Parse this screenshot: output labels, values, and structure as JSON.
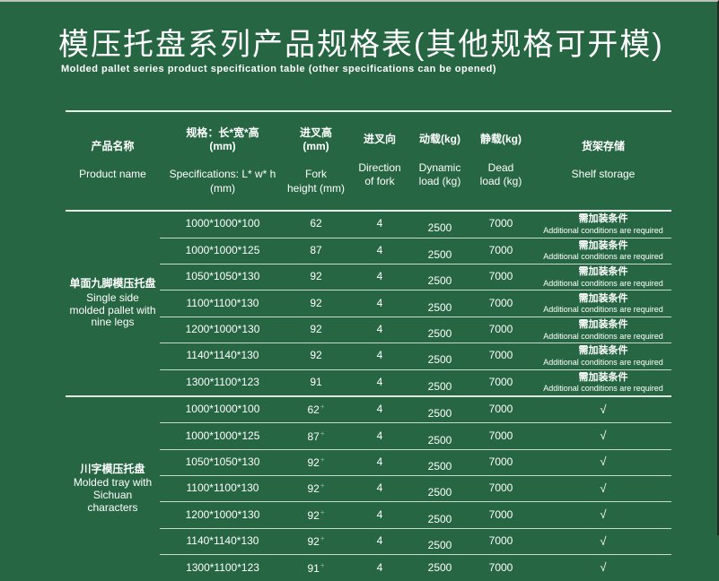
{
  "colors": {
    "background": "#266643",
    "line": "#f0f5f1",
    "text": "#ffffff"
  },
  "title": {
    "zh": "模压托盘系列产品规格表(其他规格可开模)",
    "en": "Molded pallet series product specification table (other specifications can be opened)"
  },
  "table": {
    "headers": [
      {
        "zh": "产品名称",
        "en": "Product name"
      },
      {
        "zh": "规格：长*宽*高\n(mm)",
        "en": "Specifications: L* w* h\n(mm)"
      },
      {
        "zh": "进叉高(mm)",
        "en": "Fork\nheight (mm)"
      },
      {
        "zh": "进叉向",
        "en": "Direction\nof fork"
      },
      {
        "zh": "动载(kg)",
        "en": "Dynamic\nload (kg)"
      },
      {
        "zh": "静载(kg)",
        "en": "Dead\nload (kg)"
      },
      {
        "zh": "货架存储",
        "en": "Shelf storage"
      }
    ],
    "groups": [
      {
        "name_zh": "单面九脚模压托盘",
        "name_en": "Single side molded pallet with nine legs",
        "shelf_type": "text",
        "rows": [
          {
            "spec": "1000*1000*100",
            "fork": "62",
            "dir": "4",
            "dyn": "2500",
            "dead": "7000",
            "shelf_zh": "需加装条件",
            "shelf_en": "Additional conditions are required"
          },
          {
            "spec": "1000*1000*125",
            "fork": "87",
            "dir": "4",
            "dyn": "2500",
            "dead": "7000",
            "shelf_zh": "需加装条件",
            "shelf_en": "Additional conditions are required"
          },
          {
            "spec": "1050*1050*130",
            "fork": "92",
            "dir": "4",
            "dyn": "2500",
            "dead": "7000",
            "shelf_zh": "需加装条件",
            "shelf_en": "Additional conditions are required"
          },
          {
            "spec": "1100*1100*130",
            "fork": "92",
            "dir": "4",
            "dyn": "2500",
            "dead": "7000",
            "shelf_zh": "需加装条件",
            "shelf_en": "Additional conditions are required"
          },
          {
            "spec": "1200*1000*130",
            "fork": "92",
            "dir": "4",
            "dyn": "2500",
            "dead": "7000",
            "shelf_zh": "需加装条件",
            "shelf_en": "Additional conditions are required"
          },
          {
            "spec": "1140*1140*130",
            "fork": "92",
            "dir": "4",
            "dyn": "2500",
            "dead": "7000",
            "shelf_zh": "需加装条件",
            "shelf_en": "Additional conditions are required"
          },
          {
            "spec": "1300*1100*123",
            "fork": "91",
            "dir": "4",
            "dyn": "2500",
            "dead": "7000",
            "shelf_zh": "需加装条件",
            "shelf_en": "Additional conditions are required"
          }
        ]
      },
      {
        "name_zh": "川字模压托盘",
        "name_en": "Molded tray with Sichuan characters",
        "shelf_type": "check",
        "rows": [
          {
            "spec": "1000*1000*100",
            "fork": "62",
            "fork_mark": "+",
            "dir": "4",
            "dyn": "2500",
            "dead": "7000",
            "shelf": "√"
          },
          {
            "spec": "1000*1000*125",
            "fork": "87",
            "fork_mark": "+",
            "dir": "4",
            "dyn": "2500",
            "dead": "7000",
            "shelf": "√"
          },
          {
            "spec": "1050*1050*130",
            "fork": "92",
            "fork_mark": "+",
            "dir": "4",
            "dyn": "2500",
            "dead": "7000",
            "shelf": "√"
          },
          {
            "spec": "1100*1100*130",
            "fork": "92",
            "fork_mark": "+",
            "dir": "4",
            "dyn": "2500",
            "dead": "7000",
            "shelf": "√"
          },
          {
            "spec": "1200*1000*130",
            "fork": "92",
            "fork_mark": "+",
            "dir": "4",
            "dyn": "2500",
            "dead": "7000",
            "shelf": "√"
          },
          {
            "spec": "1140*1140*130",
            "fork": "92",
            "fork_mark": "+",
            "dir": "4",
            "dyn": "2500",
            "dead": "7000",
            "shelf": "√"
          },
          {
            "spec": "1300*1100*123",
            "fork": "91",
            "fork_mark": "+",
            "dir": "4",
            "dyn": "2500",
            "dead": "7000",
            "shelf": "√"
          }
        ]
      }
    ]
  }
}
